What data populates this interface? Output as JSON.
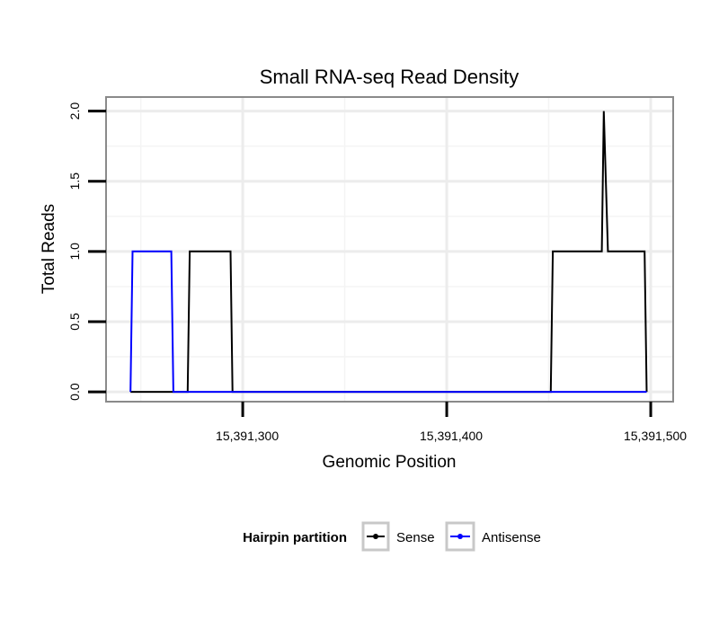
{
  "chart_data": {
    "type": "line",
    "title": "Small RNA-seq Read Density",
    "xlabel": "Genomic Position",
    "ylabel": "Total Reads",
    "xlim": [
      15391233,
      15391511
    ],
    "ylim": [
      -0.07,
      2.1
    ],
    "x_ticks": [
      15391300,
      15391400,
      15391500
    ],
    "x_tick_labels": [
      "15,391,300",
      "15,391,400",
      "15,391,500"
    ],
    "x_minor_grid": [
      15391250,
      15391350,
      15391450
    ],
    "y_ticks": [
      0.0,
      0.5,
      1.0,
      1.5,
      2.0
    ],
    "y_tick_labels": [
      "0.0",
      "0.5",
      "1.0",
      "1.5",
      "2.0"
    ],
    "y_minor_grid": [
      0.25,
      0.75,
      1.25,
      1.75
    ],
    "grid": true,
    "legend": {
      "title": "Hairpin partition",
      "position": "bottom",
      "entries": [
        "Sense",
        "Antisense"
      ]
    },
    "series": [
      {
        "name": "Sense",
        "color": "#000000",
        "x": [
          15391245,
          15391273,
          15391274,
          15391294,
          15391295,
          15391451,
          15391452,
          15391476,
          15391477,
          15391479,
          15391480,
          15391497,
          15391498
        ],
        "y": [
          0,
          0,
          1,
          1,
          0,
          0,
          1,
          1,
          2,
          1,
          1,
          1,
          0
        ]
      },
      {
        "name": "Antisense",
        "color": "#0000ff",
        "x": [
          15391245,
          15391246,
          15391265,
          15391266,
          15391498
        ],
        "y": [
          0,
          1,
          1,
          0,
          0
        ]
      }
    ]
  }
}
